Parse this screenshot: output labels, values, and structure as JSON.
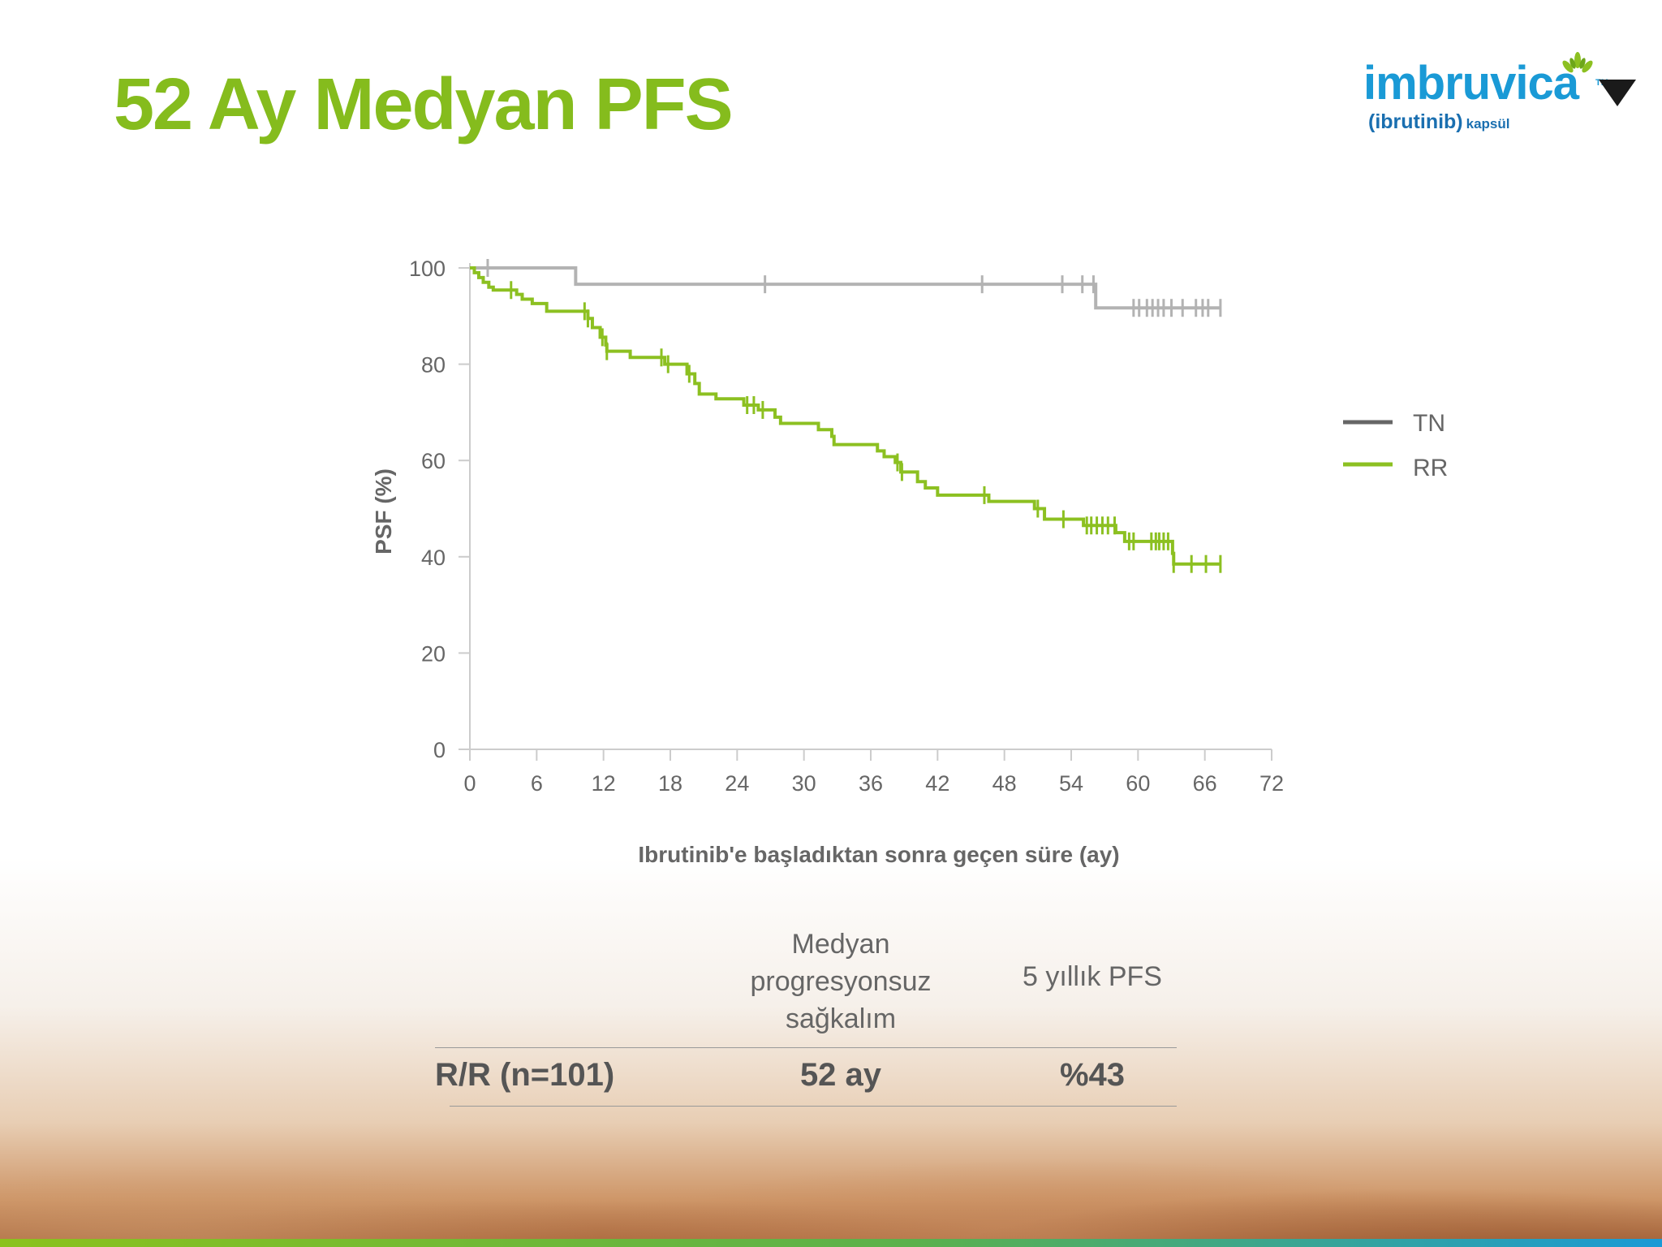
{
  "title": "52 Ay Medyan PFS",
  "logo": {
    "brand": "imbruvica",
    "tm": "TM",
    "generic": "(ibrutinib)",
    "form": "kapsül"
  },
  "colors": {
    "title": "#85bc1d",
    "tn": "#b3b3b3",
    "rr": "#8cc021",
    "axis": "#cccccc",
    "text": "#666666"
  },
  "chart_data": {
    "type": "line",
    "title": "",
    "xlabel": "Ibrutinib'e başladıktan sonra geçen süre (ay)",
    "ylabel": "PSF (%)",
    "xlim": [
      0,
      72
    ],
    "ylim": [
      0,
      100
    ],
    "xticks": [
      0,
      6,
      12,
      18,
      24,
      30,
      36,
      42,
      48,
      54,
      60,
      66,
      72
    ],
    "yticks": [
      0,
      20,
      40,
      60,
      80,
      100
    ],
    "legend_position": "right",
    "series": [
      {
        "name": "TN",
        "color": "#b3b3b3",
        "steps": [
          [
            0,
            100
          ],
          [
            9.5,
            96.6
          ],
          [
            56.2,
            91.7
          ],
          [
            67.4,
            91.7
          ]
        ],
        "censor": [
          1.6,
          26.5,
          46,
          53.2,
          55,
          56,
          59.6,
          60.1,
          60.8,
          61.3,
          61.8,
          62.3,
          63,
          64,
          65.2,
          65.8,
          66.3,
          67.4
        ]
      },
      {
        "name": "RR",
        "color": "#8cc021",
        "steps": [
          [
            0,
            100
          ],
          [
            0.4,
            99
          ],
          [
            0.8,
            98
          ],
          [
            1.2,
            97
          ],
          [
            1.7,
            96
          ],
          [
            2.1,
            95.4
          ],
          [
            4.2,
            94.5
          ],
          [
            4.7,
            93.5
          ],
          [
            5.6,
            92.6
          ],
          [
            6.9,
            91
          ],
          [
            10.6,
            89.5
          ],
          [
            11,
            87.6
          ],
          [
            11.7,
            85.6
          ],
          [
            12.2,
            84
          ],
          [
            12.3,
            82.7
          ],
          [
            14.4,
            81.4
          ],
          [
            17.5,
            80
          ],
          [
            19.5,
            78
          ],
          [
            20.2,
            76
          ],
          [
            20.6,
            73.8
          ],
          [
            22.1,
            72.8
          ],
          [
            24.6,
            71.5
          ],
          [
            25.9,
            70.5
          ],
          [
            27.4,
            69
          ],
          [
            27.9,
            67.7
          ],
          [
            31.3,
            66.4
          ],
          [
            32.5,
            65
          ],
          [
            32.7,
            63.3
          ],
          [
            36.6,
            62
          ],
          [
            37.2,
            60.8
          ],
          [
            38.2,
            59.6
          ],
          [
            38.7,
            57.6
          ],
          [
            40.2,
            55.6
          ],
          [
            40.9,
            54.3
          ],
          [
            42,
            52.8
          ],
          [
            46,
            52.8
          ],
          [
            46.6,
            51.5
          ],
          [
            50.7,
            50
          ],
          [
            51.6,
            47.8
          ],
          [
            55.1,
            46.5
          ],
          [
            58,
            45
          ],
          [
            58.8,
            43.2
          ],
          [
            63.1,
            40.7
          ],
          [
            63.2,
            38.5
          ],
          [
            67.4,
            38.5
          ]
        ],
        "censor": [
          3.7,
          10.3,
          10.6,
          11.9,
          12.3,
          17.2,
          17.8,
          19.7,
          24.9,
          25.5,
          26.3,
          38.4,
          38.8,
          46.2,
          51,
          53.3,
          55.4,
          55.8,
          56.3,
          56.8,
          57.3,
          57.9,
          59.2,
          59.6,
          61.2,
          61.6,
          61.9,
          62.3,
          62.7,
          63.2,
          64.8,
          66.1,
          67.4
        ]
      }
    ]
  },
  "table": {
    "header_median_lines": [
      "Medyan",
      "progresyonsuz",
      "sağkalım"
    ],
    "header_5y": "5 yıllık PFS",
    "row_label": "R/R (n=101)",
    "row_median": "52 ay",
    "row_5y": "%43"
  }
}
